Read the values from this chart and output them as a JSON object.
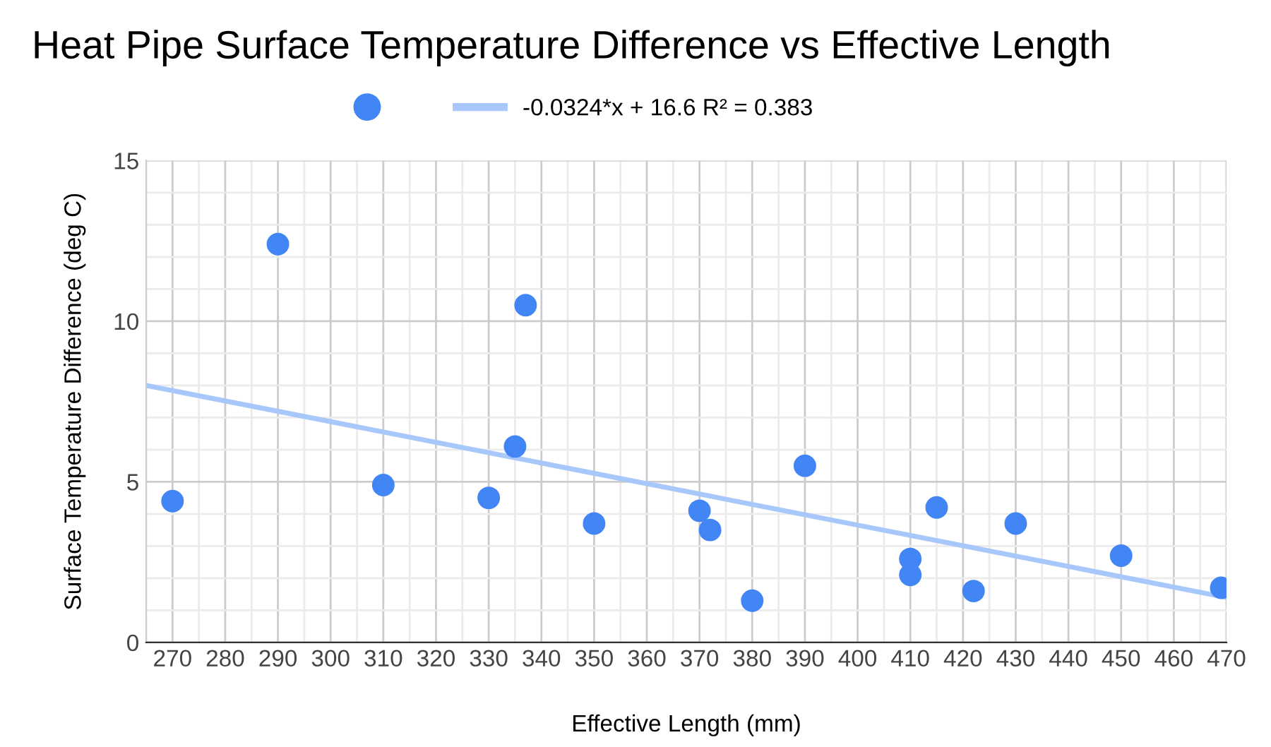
{
  "chart_data": {
    "type": "scatter",
    "title": "Heat Pipe Surface Temperature Difference vs Effective Length",
    "xlabel": "Effective Length (mm)",
    "ylabel": "Surface Temperature Difference (deg C)",
    "series": [
      {
        "marker": "circle",
        "color": "#4285f4",
        "x": [
          270,
          290,
          310,
          330,
          335,
          337,
          350,
          370,
          372,
          380,
          390,
          410,
          410,
          415,
          422,
          430,
          450,
          469
        ],
        "values": [
          4.4,
          12.4,
          4.9,
          4.5,
          6.1,
          10.5,
          3.7,
          4.1,
          3.5,
          1.3,
          5.5,
          2.6,
          2.1,
          4.2,
          1.6,
          3.7,
          2.7,
          1.7
        ]
      },
      {
        "type": "line",
        "name": "-0.0324*x + 16.6 R² = 0.383",
        "color": "#a8c7fa",
        "x": [
          265,
          470
        ],
        "values": [
          8.0,
          1.4
        ]
      }
    ],
    "xlim": [
      265,
      470
    ],
    "ylim": [
      0,
      15
    ],
    "xticks": [
      270,
      280,
      290,
      300,
      310,
      320,
      330,
      340,
      350,
      360,
      370,
      380,
      390,
      400,
      410,
      420,
      430,
      440,
      450,
      460,
      470
    ],
    "yticks": [
      0,
      5,
      10,
      15
    ],
    "grid": true,
    "legend": "top"
  }
}
